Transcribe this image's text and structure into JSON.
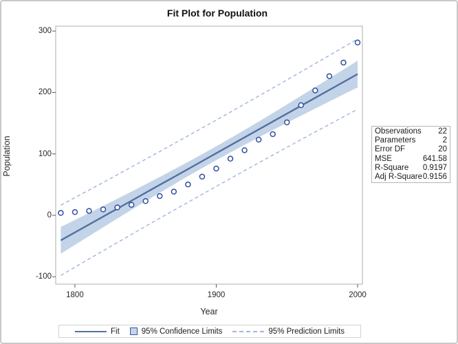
{
  "chart_data": {
    "type": "scatter",
    "title": "Fit Plot for Population",
    "xlabel": "Year",
    "ylabel": "Population",
    "xlim": [
      1786.4,
      2003.4
    ],
    "ylim": [
      -112,
      308
    ],
    "xticks": [
      1800,
      1900,
      2000
    ],
    "yticks": [
      300,
      200,
      100,
      0,
      -100
    ],
    "grid": false,
    "legend_position": "bottom",
    "points": {
      "x": [
        1790,
        1800,
        1810,
        1820,
        1830,
        1840,
        1850,
        1860,
        1870,
        1880,
        1890,
        1900,
        1910,
        1920,
        1930,
        1940,
        1950,
        1960,
        1970,
        1980,
        1990,
        2000
      ],
      "y": [
        3.9,
        5.3,
        7.2,
        9.6,
        12.9,
        17.1,
        23.2,
        31.4,
        38.6,
        50.2,
        63.0,
        76.2,
        92.2,
        106.0,
        123.2,
        132.2,
        151.3,
        179.3,
        203.3,
        226.5,
        248.7,
        281.4
      ]
    },
    "fit": {
      "x": [
        1790,
        1800,
        1810,
        1820,
        1830,
        1840,
        1850,
        1860,
        1870,
        1880,
        1890,
        1900,
        1910,
        1920,
        1930,
        1940,
        1950,
        1960,
        1970,
        1980,
        1990,
        2000
      ],
      "y": [
        -40.7,
        -27.8,
        -14.9,
        -2.0,
        10.9,
        23.8,
        36.7,
        49.6,
        62.4,
        75.3,
        88.2,
        101.1,
        114.0,
        126.9,
        139.8,
        152.7,
        165.5,
        178.4,
        191.3,
        204.2,
        217.1,
        230.0
      ]
    },
    "confidence": {
      "x": [
        1790,
        1800,
        1810,
        1820,
        1830,
        1840,
        1850,
        1860,
        1870,
        1880,
        1890,
        1900,
        1910,
        1920,
        1930,
        1940,
        1950,
        1960,
        1970,
        1980,
        1990,
        2000
      ],
      "upper": [
        -18.9,
        -7.5,
        3.9,
        15.4,
        27.0,
        38.7,
        50.5,
        62.4,
        74.6,
        86.9,
        99.5,
        112.4,
        125.6,
        139.0,
        152.6,
        166.5,
        180.5,
        194.6,
        208.8,
        223.0,
        237.4,
        251.8
      ],
      "lower": [
        -62.4,
        -48.1,
        -33.7,
        -19.4,
        -5.2,
        8.9,
        22.9,
        36.7,
        50.3,
        63.8,
        76.9,
        89.8,
        102.4,
        114.8,
        126.9,
        138.9,
        150.6,
        162.3,
        173.9,
        185.4,
        196.8,
        208.2
      ]
    },
    "prediction": {
      "x": [
        1790,
        1800,
        1810,
        1820,
        1830,
        1840,
        1850,
        1860,
        1870,
        1880,
        1890,
        1900,
        1910,
        1920,
        1930,
        1940,
        1950,
        1960,
        1970,
        1980,
        1990,
        2000
      ],
      "upper": [
        16.5,
        28.8,
        41.2,
        53.6,
        66.1,
        78.7,
        91.3,
        103.9,
        116.7,
        129.4,
        142.3,
        155.1,
        168.1,
        181.1,
        194.2,
        207.3,
        220.5,
        233.7,
        247.0,
        260.3,
        273.7,
        287.1
      ],
      "lower": [
        -97.8,
        -84.4,
        -71.0,
        -57.6,
        -44.4,
        -31.1,
        -17.9,
        -4.8,
        8.2,
        21.2,
        34.2,
        47.1,
        59.9,
        72.7,
        85.4,
        98.1,
        110.7,
        123.2,
        135.7,
        148.1,
        160.5,
        172.8
      ]
    },
    "colors": {
      "fit_line": "#53709f",
      "confidence_band": "#c3d4e9",
      "prediction_line": "#9fb4da",
      "marker_stroke": "#2e4f9e",
      "frame": "#adadad",
      "tick": "#585858"
    }
  },
  "legend": {
    "items": [
      {
        "label": "Fit",
        "swatch": "line"
      },
      {
        "label": "95% Confidence Limits",
        "swatch": "box"
      },
      {
        "label": "95% Prediction Limits",
        "swatch": "dash"
      }
    ]
  },
  "stats_table": {
    "rows": [
      {
        "label": "Observations",
        "value": "22"
      },
      {
        "label": "Parameters",
        "value": "2"
      },
      {
        "label": "Error DF",
        "value": "20"
      },
      {
        "label": "MSE",
        "value": "641.58"
      },
      {
        "label": "R-Square",
        "value": "0.9197"
      },
      {
        "label": "Adj R-Square",
        "value": "0.9156"
      }
    ]
  }
}
